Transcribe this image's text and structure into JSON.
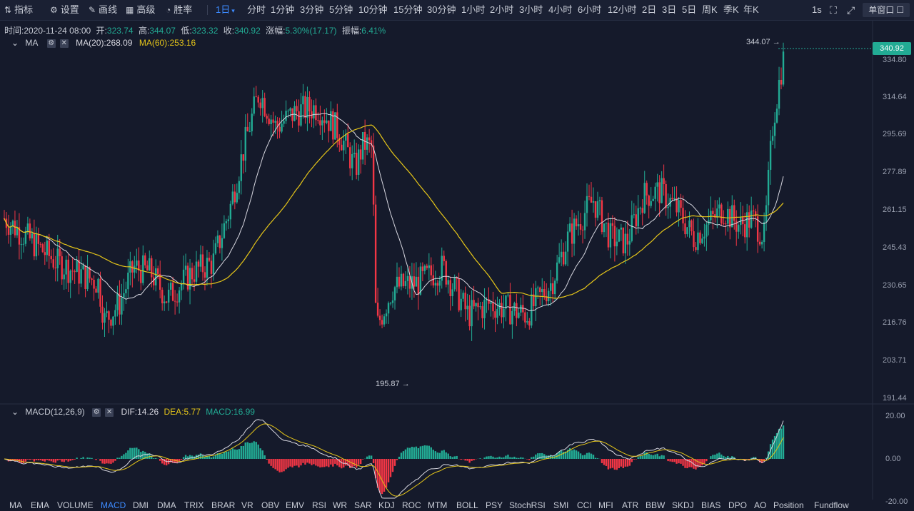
{
  "toolbar": {
    "indicators": "指标",
    "settings": "设置",
    "draw": "画线",
    "advanced": "高级",
    "winrate": "胜率",
    "period_selected": "1日",
    "periods": [
      "分时",
      "1分钟",
      "3分钟",
      "5分钟",
      "10分钟",
      "15分钟",
      "30分钟",
      "1小时",
      "2小时",
      "3小时",
      "4小时",
      "6小时",
      "12小时",
      "2日",
      "3日",
      "5日",
      "周K",
      "季K",
      "年K"
    ],
    "refresh": "1s",
    "window": "单窗口"
  },
  "info": {
    "time_label": "时间:",
    "time": "2020-11-24 08:00",
    "open_label": "开:",
    "open": "323.74",
    "high_label": "高:",
    "high": "344.07",
    "low_label": "低:",
    "low": "323.32",
    "close_label": "收:",
    "close": "340.92",
    "change_label": "涨幅:",
    "change": "5.30%(17.17)",
    "amp_label": "振幅:",
    "amp": "6.41%"
  },
  "ma_legend": {
    "name": "MA",
    "ma20": "MA(20):268.09",
    "ma60": "MA(60):253.16"
  },
  "macd_legend": {
    "name": "MACD(12,26,9)",
    "dif": "DIF:14.26",
    "dea": "DEA:5.77",
    "macd": "MACD:16.99"
  },
  "price_axis": [
    "334.80",
    "314.64",
    "295.69",
    "277.89",
    "261.15",
    "245.43",
    "230.65",
    "216.76",
    "203.71",
    "191.44"
  ],
  "last_price": "340.92",
  "high_marker": "344.07",
  "low_marker": "195.87",
  "macd_axis": [
    "20.00",
    "0.00",
    "-20.00"
  ],
  "bottom_tabs": [
    "MA",
    "EMA",
    "VOLUME",
    "MACD",
    "DMI",
    "DMA",
    "TRIX",
    "BRAR",
    "VR",
    "OBV",
    "EMV",
    "RSI",
    "WR",
    "SAR",
    "KDJ",
    "ROC",
    "MTM",
    "BOLL",
    "PSY",
    "StochRSI",
    "SMI",
    "CCI",
    "MFI",
    "ATR",
    "BBW",
    "SKDJ",
    "BIAS",
    "DPO",
    "AO",
    "Position",
    "Fundflow"
  ],
  "bottom_tab_active": "MACD",
  "colors": {
    "up": "#22ab94",
    "down": "#f23645",
    "ma20": "#d7d7e0",
    "ma60": "#e6c619",
    "bg": "#151a2b",
    "accent": "#3d8bff"
  }
}
